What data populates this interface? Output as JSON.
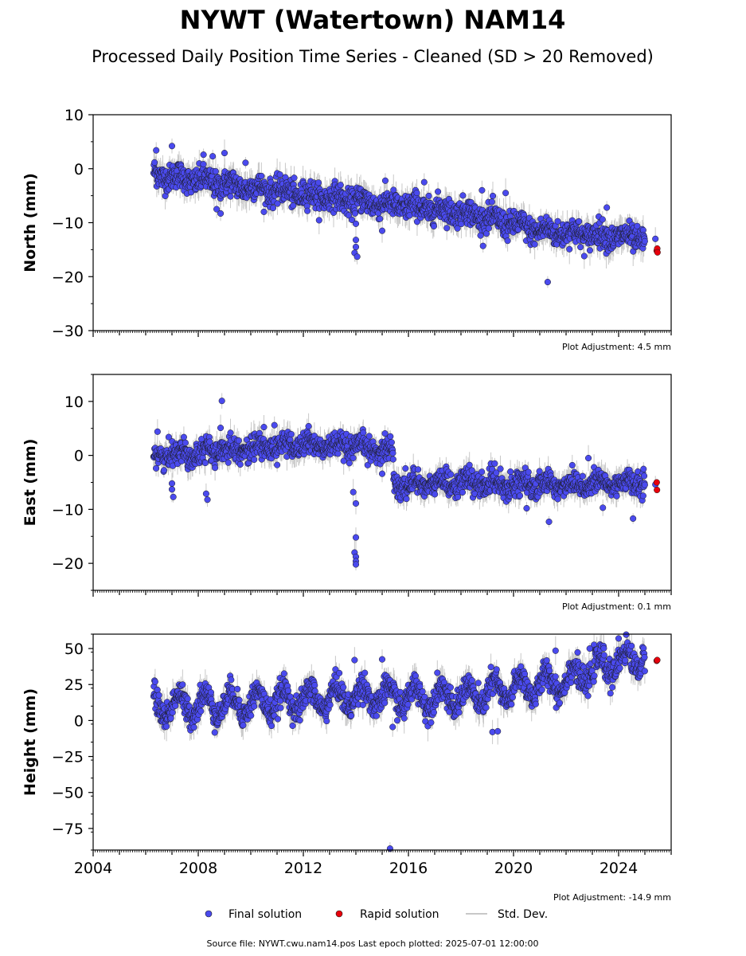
{
  "header": {
    "title": "NYWT (Watertown) NAM14",
    "subtitle": "Processed Daily Position Time Series - Cleaned (SD > 20 Removed)"
  },
  "footer": {
    "source": "Source file: NYWT.cwu.nam14.pos  Last epoch plotted: 2025-07-01 12:00:00"
  },
  "legend": {
    "final": "Final solution",
    "rapid": "Rapid solution",
    "std": "Std. Dev."
  },
  "colors": {
    "final": "#4a4aee",
    "rapid": "#e8000b",
    "std": "#c8c8c8",
    "marker_edge": "#1a1a1a"
  },
  "chart_data": [
    {
      "type": "scatter",
      "ylabel": "North (mm)",
      "adjustment": "Plot Adjustment: 4.5 mm",
      "xlim": [
        2004,
        2026
      ],
      "ylim": [
        -30,
        10
      ],
      "yticks": [
        10,
        0,
        -10,
        -20,
        -30
      ],
      "yticklabels": [
        "10",
        "0",
        "−10",
        "−20",
        "−30"
      ],
      "span": [
        2006.3,
        2025.0
      ],
      "trend": [
        [
          2006.3,
          -1.0
        ],
        [
          2010.0,
          -3.5
        ],
        [
          2014.0,
          -6.0
        ],
        [
          2018.0,
          -8.0
        ],
        [
          2021.0,
          -11.5
        ],
        [
          2025.0,
          -13.0
        ]
      ],
      "scatter_sd": 1.2,
      "seasonal_amp": 0.6,
      "outliers": [
        [
          2008.7,
          -7.5
        ],
        [
          2008.85,
          -8.3
        ],
        [
          2006.4,
          3.4
        ],
        [
          2007.0,
          4.2
        ],
        [
          2008.2,
          2.6
        ],
        [
          2008.55,
          2.3
        ],
        [
          2009.0,
          2.9
        ],
        [
          2009.8,
          1.1
        ],
        [
          2014.0,
          -13.2
        ],
        [
          2014.0,
          -14.5
        ],
        [
          2013.95,
          -15.6
        ],
        [
          2014.05,
          -16.3
        ],
        [
          2014.0,
          -10.2
        ],
        [
          2015.0,
          -11.5
        ],
        [
          2016.6,
          -2.5
        ],
        [
          2018.8,
          -4.0
        ],
        [
          2019.7,
          -4.5
        ],
        [
          2021.3,
          -21.0
        ],
        [
          2023.55,
          -7.2
        ],
        [
          2025.4,
          -13.0
        ]
      ],
      "rapid": [
        [
          2025.45,
          -15.2
        ],
        [
          2025.47,
          -14.8
        ],
        [
          2025.48,
          -15.5
        ]
      ]
    },
    {
      "type": "scatter",
      "ylabel": "East (mm)",
      "adjustment": "Plot Adjustment: 0.1 mm",
      "xlim": [
        2004,
        2026
      ],
      "ylim": [
        -25,
        15
      ],
      "yticks": [
        10,
        0,
        -10,
        -20
      ],
      "yticklabels": [
        "10",
        "0",
        "−10",
        "−20"
      ],
      "span": [
        2006.3,
        2025.0
      ],
      "trend": [
        [
          2006.3,
          0.0
        ],
        [
          2009.0,
          1.0
        ],
        [
          2012.0,
          2.0
        ],
        [
          2015.4,
          1.0
        ],
        [
          2015.45,
          -5.5
        ],
        [
          2018.0,
          -5.0
        ],
        [
          2021.0,
          -5.5
        ],
        [
          2025.0,
          -5.0
        ]
      ],
      "scatter_sd": 1.1,
      "seasonal_amp": 0.7,
      "outliers": [
        [
          2006.45,
          4.4
        ],
        [
          2007.0,
          -5.2
        ],
        [
          2007.0,
          -6.3
        ],
        [
          2007.05,
          -7.7
        ],
        [
          2008.3,
          -7.1
        ],
        [
          2008.35,
          -8.2
        ],
        [
          2008.9,
          10.1
        ],
        [
          2008.85,
          5.1
        ],
        [
          2010.9,
          5.6
        ],
        [
          2012.2,
          5.4
        ],
        [
          2013.9,
          -6.8
        ],
        [
          2014.0,
          -8.9
        ],
        [
          2014.0,
          -15.2
        ],
        [
          2013.95,
          -18.0
        ],
        [
          2014.0,
          -18.8
        ],
        [
          2014.0,
          -19.6
        ],
        [
          2014.0,
          -20.2
        ],
        [
          2015.0,
          -3.4
        ],
        [
          2020.5,
          -9.8
        ],
        [
          2021.35,
          -12.3
        ],
        [
          2022.85,
          -0.5
        ],
        [
          2023.4,
          -9.7
        ],
        [
          2024.55,
          -11.7
        ],
        [
          2025.4,
          -5.4
        ]
      ],
      "rapid": [
        [
          2025.45,
          -5.0
        ],
        [
          2025.46,
          -6.4
        ]
      ]
    },
    {
      "type": "scatter",
      "ylabel": "Height (mm)",
      "adjustment": "Plot Adjustment: -14.9 mm",
      "xlim": [
        2004,
        2026
      ],
      "ylim": [
        -90,
        60
      ],
      "yticks": [
        50,
        25,
        0,
        -25,
        -50,
        -75
      ],
      "yticklabels": [
        "50",
        "25",
        "0",
        "−25",
        "−50",
        "−75"
      ],
      "xticks": [
        2004,
        2008,
        2012,
        2016,
        2020,
        2024
      ],
      "xticklabels": [
        "2004",
        "2008",
        "2012",
        "2016",
        "2020",
        "2024"
      ],
      "span": [
        2006.3,
        2025.0
      ],
      "trend": [
        [
          2006.3,
          10.0
        ],
        [
          2010.0,
          12.0
        ],
        [
          2014.0,
          17.0
        ],
        [
          2018.0,
          16.0
        ],
        [
          2020.0,
          22.0
        ],
        [
          2022.0,
          28.0
        ],
        [
          2023.5,
          38.0
        ],
        [
          2025.0,
          45.0
        ]
      ],
      "scatter_sd": 4.5,
      "seasonal_amp": 8.0,
      "outliers": [
        [
          2015.3,
          -89.0
        ],
        [
          2013.95,
          42.0
        ],
        [
          2015.0,
          42.5
        ],
        [
          2015.4,
          -4.5
        ],
        [
          2019.2,
          -8.0
        ],
        [
          2019.4,
          -7.5
        ],
        [
          2021.6,
          48.5
        ],
        [
          2022.9,
          50.0
        ],
        [
          2024.0,
          57.0
        ]
      ],
      "rapid": [
        [
          2025.45,
          41.5
        ],
        [
          2025.47,
          42.0
        ]
      ]
    }
  ]
}
